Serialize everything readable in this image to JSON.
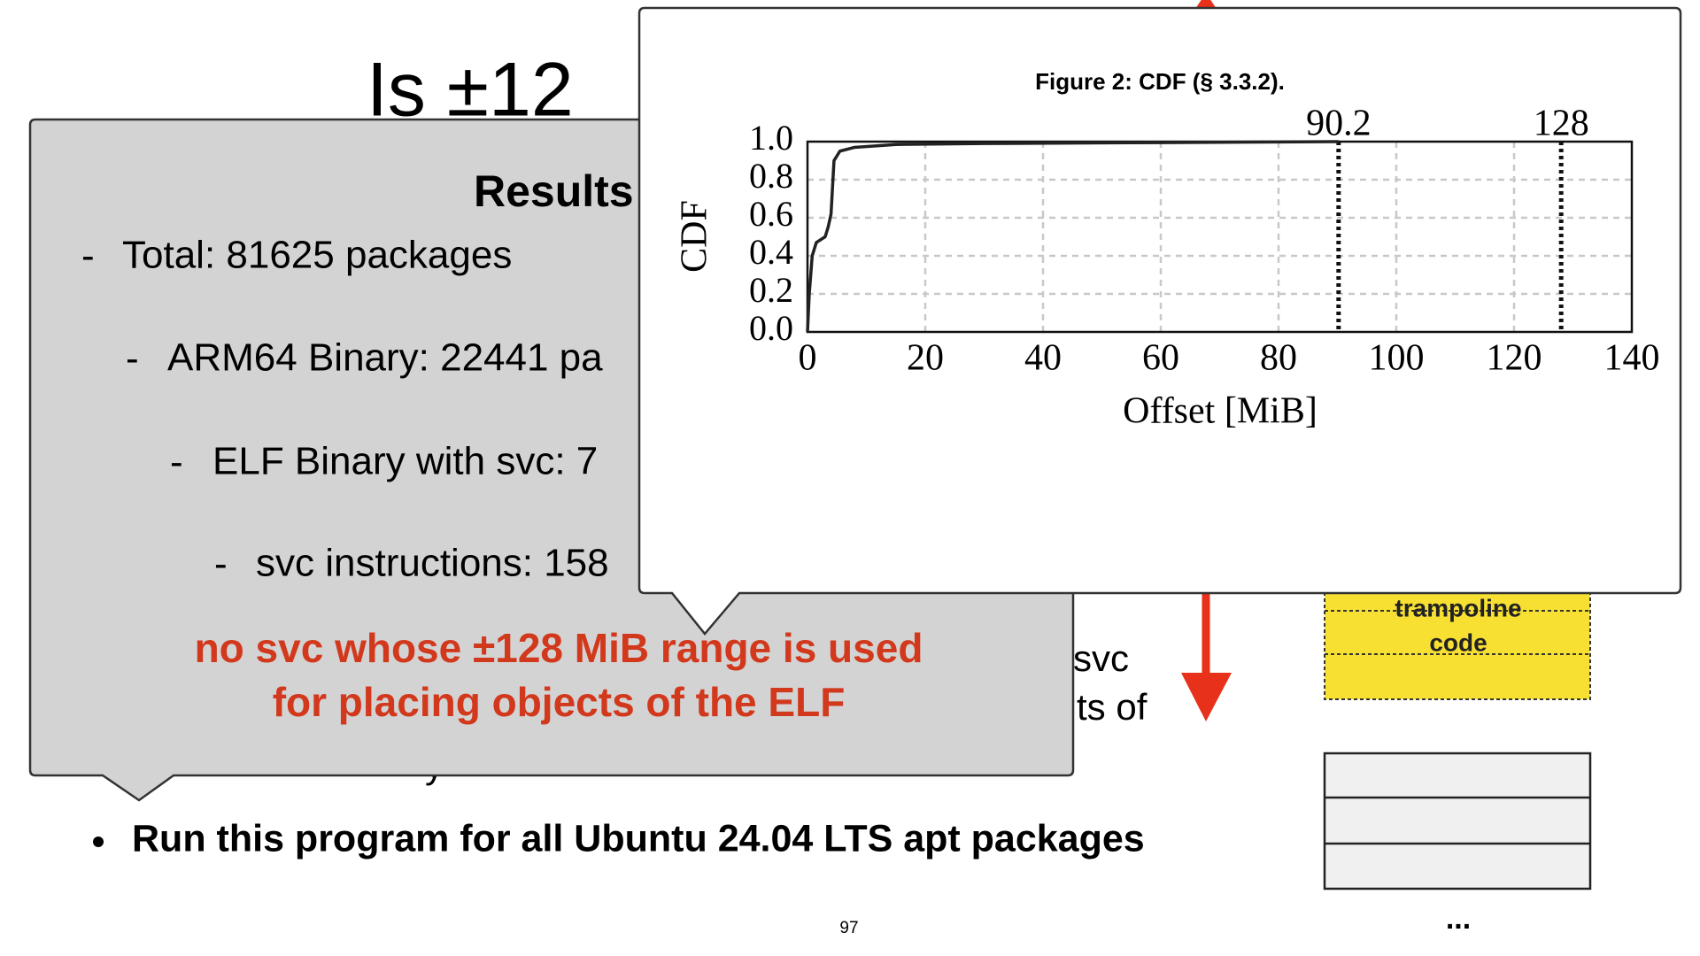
{
  "slide": {
    "title": "Is ±12",
    "background_fragments": [
      "svc",
      "ts of",
      "y"
    ],
    "bullet": "Run this program for all Ubuntu 24.04 LTS apt packages",
    "page_number": "97",
    "diagram": {
      "trampoline": [
        "trampoline",
        "code"
      ],
      "ellipsis": "..."
    }
  },
  "callout": {
    "heading": "Results",
    "items": [
      "Total: 81625 packages",
      "ARM64 Binary: 22441 pa",
      "ELF Binary with svc: 7",
      "svc instructions: 158"
    ],
    "note": [
      "no svc whose ±128 MiB range is used",
      "for placing objects of the ELF"
    ]
  },
  "chart_data": {
    "type": "line",
    "title": "Figure 2: CDF (§ 3.3.2).",
    "x_label": "Offset [MiB]",
    "y_label": "CDF",
    "x": [
      0,
      0.3,
      0.8,
      1.5,
      3,
      3.5,
      4,
      4.5,
      5.5,
      8,
      15,
      30,
      60,
      90.2
    ],
    "values": [
      0,
      0.2,
      0.4,
      0.47,
      0.5,
      0.55,
      0.62,
      0.9,
      0.95,
      0.97,
      0.985,
      0.99,
      0.995,
      1.0
    ],
    "color": "#222222",
    "xlim": [
      0,
      140
    ],
    "xticks": [
      0,
      20,
      40,
      60,
      80,
      100,
      120,
      140
    ],
    "ylim": [
      0,
      1
    ],
    "yticks": [
      {
        "value": 0,
        "label": "0.0"
      },
      {
        "value": 0.2,
        "label": "0.2"
      },
      {
        "value": 0.4,
        "label": "0.4"
      },
      {
        "value": 0.6,
        "label": "0.6"
      },
      {
        "value": 0.8,
        "label": "0.8"
      },
      {
        "value": 1,
        "label": "1.0"
      }
    ],
    "grid": true,
    "vlines": [
      90.2,
      128
    ]
  }
}
